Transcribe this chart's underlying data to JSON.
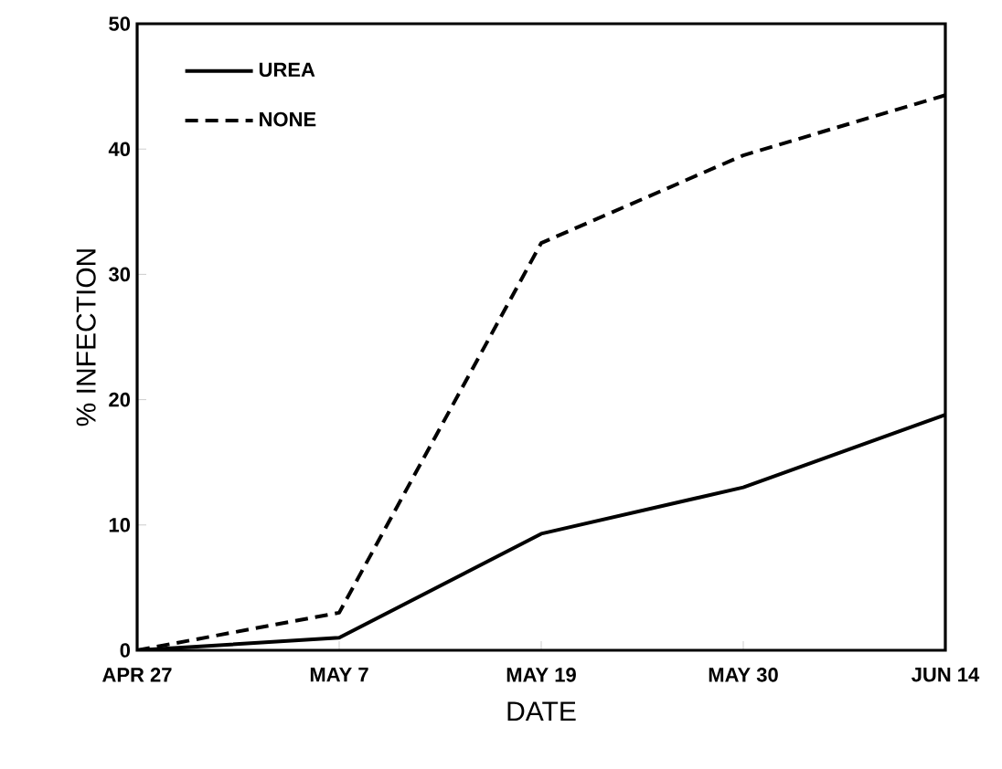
{
  "chart_data": {
    "type": "line",
    "xlabel": "DATE",
    "ylabel": "% INFECTION",
    "categories": [
      "APR 27",
      "MAY 7",
      "MAY 19",
      "MAY 30",
      "JUN 14"
    ],
    "series": [
      {
        "name": "UREA",
        "color": "#000000",
        "line_style": "solid",
        "values": [
          0,
          1,
          9.3,
          13,
          18.8
        ]
      },
      {
        "name": "NONE",
        "color": "#000000",
        "line_style": "dashed",
        "values": [
          0,
          3,
          32.5,
          39.5,
          44.3
        ]
      }
    ],
    "ylim": [
      0,
      50
    ],
    "yticks": [
      0,
      10,
      20,
      30,
      40,
      50
    ],
    "legend": "top left",
    "grid": false,
    "marker": "none"
  }
}
